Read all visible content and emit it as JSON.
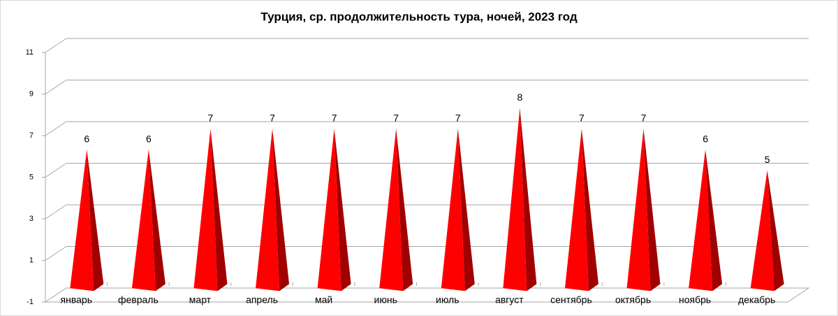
{
  "chart_data": {
    "type": "pyramid3d",
    "title": "Турция, ср. продолжительность тура, ночей, 2023 год",
    "categories": [
      "январь",
      "февраль",
      "март",
      "апрель",
      "май",
      "июнь",
      "июль",
      "август",
      "сентябрь",
      "октябрь",
      "ноябрь",
      "декабрь"
    ],
    "values": [
      6,
      6,
      7,
      7,
      7,
      7,
      7,
      8,
      7,
      7,
      6,
      5
    ],
    "color": "#ff0000",
    "ylim": [
      -1,
      11
    ],
    "yticks": [
      -1,
      1,
      3,
      5,
      7,
      9,
      11
    ],
    "grid": true
  }
}
